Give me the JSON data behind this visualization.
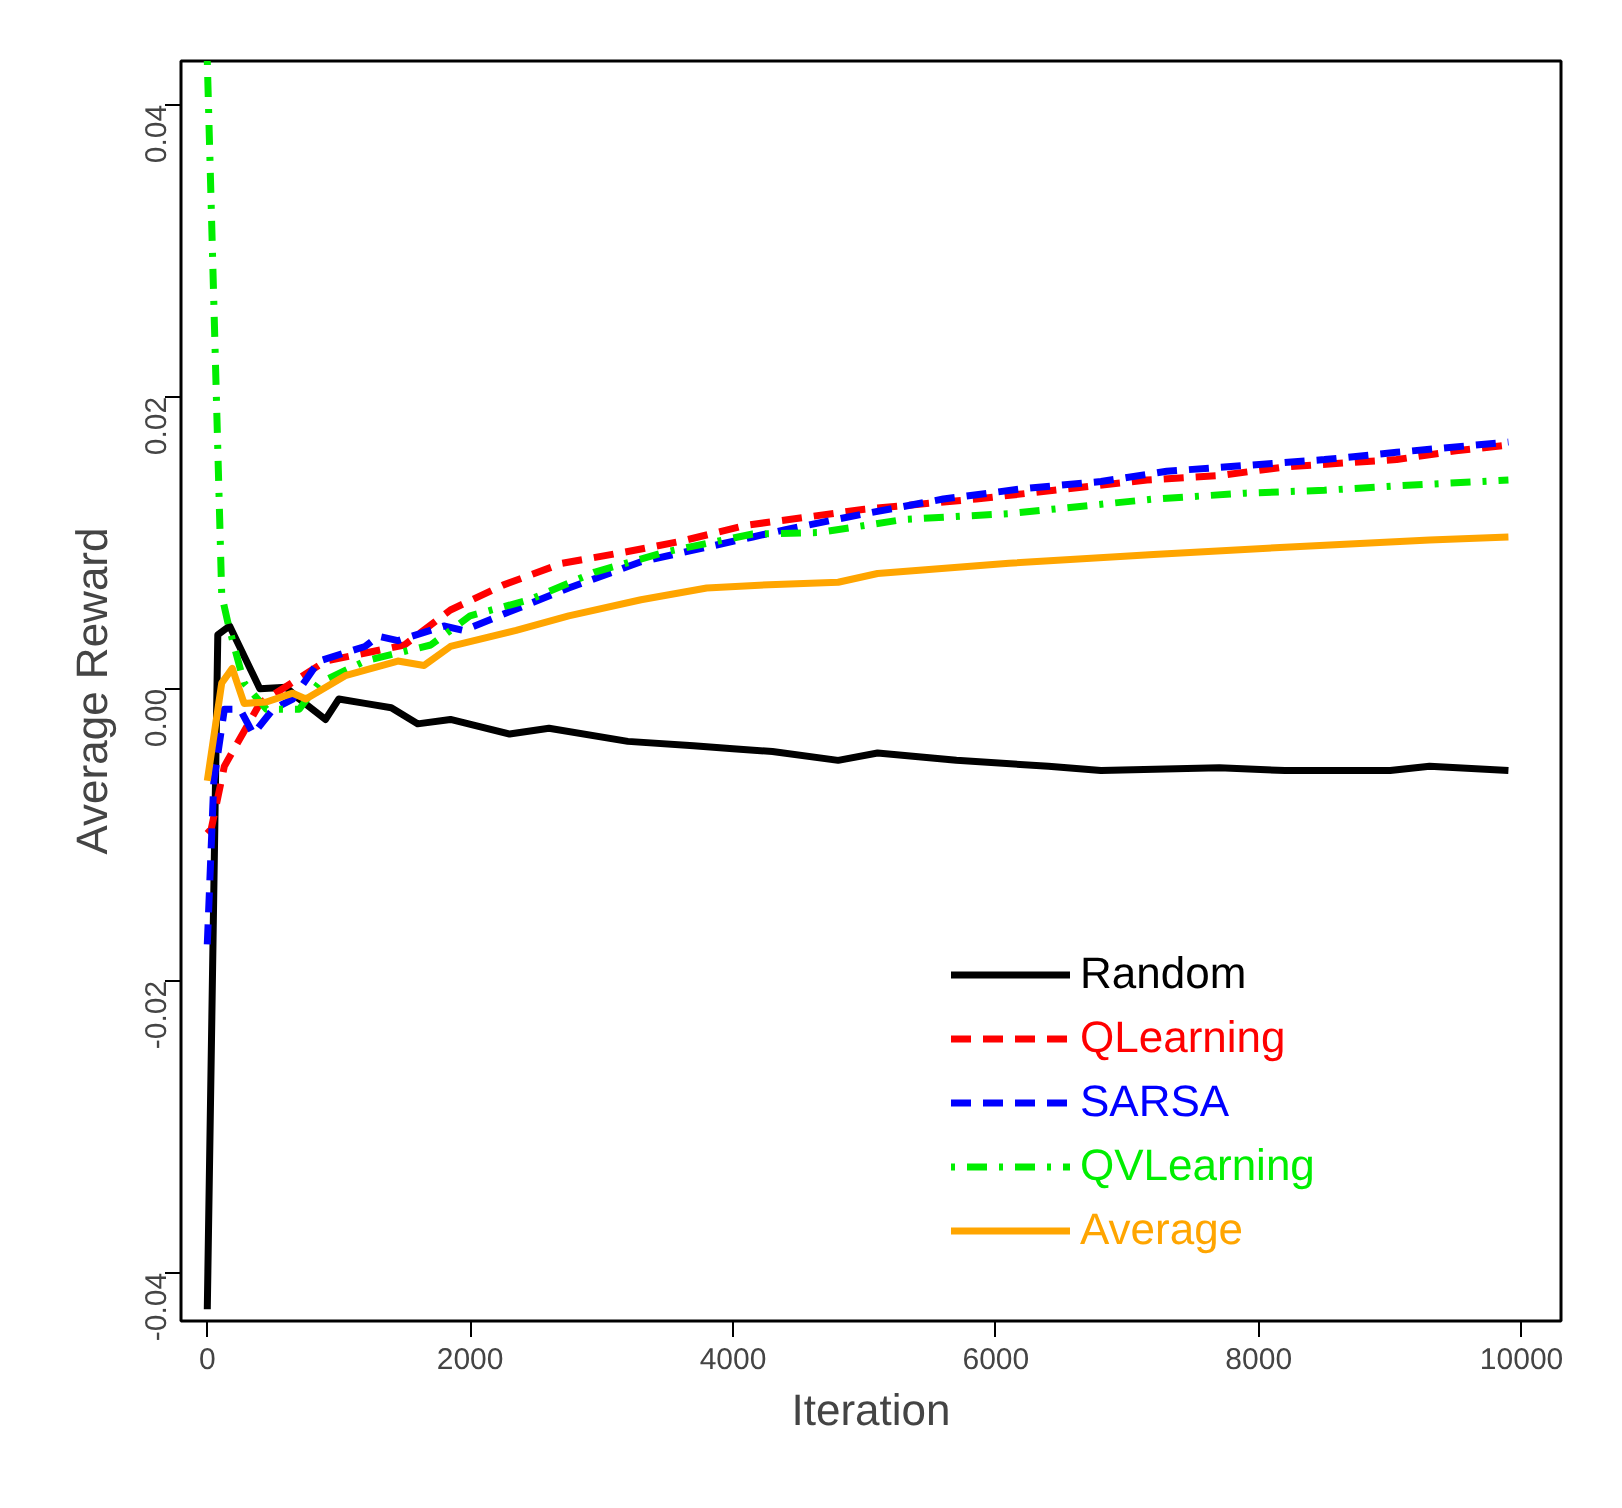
{
  "chart_data": {
    "type": "line",
    "xlabel": "Iteration",
    "ylabel": "Average Reward",
    "xlim": [
      -200,
      10300
    ],
    "ylim": [
      -0.0433,
      0.043
    ],
    "xticks": [
      0,
      2000,
      4000,
      6000,
      8000,
      10000
    ],
    "yticks": [
      {
        "value": -0.04,
        "label": "-0.04"
      },
      {
        "value": -0.02,
        "label": "-0.02"
      },
      {
        "value": 0,
        "label": "0.00"
      },
      {
        "value": 0.02,
        "label": "0.02"
      },
      {
        "value": 0.04,
        "label": "0.04"
      }
    ],
    "grid": false,
    "legend": "bottom right",
    "marker": "none",
    "series": [
      {
        "name": "Random",
        "color": "#000000",
        "line_style": "solid",
        "x": [
          0,
          80,
          170,
          400,
          600,
          700,
          900,
          1000,
          1200,
          1400,
          1600,
          1850,
          2300,
          2600,
          3200,
          3700,
          4000,
          4300,
          4800,
          5100,
          5700,
          6400,
          6800,
          7700,
          8200,
          9000,
          9300,
          9900
        ],
        "values": [
          -0.0425,
          0.0037,
          0.0043,
          0.0,
          0.0001,
          -0.0007,
          -0.0021,
          -0.0007,
          -0.001,
          -0.0013,
          -0.0024,
          -0.0021,
          -0.0031,
          -0.0027,
          -0.0036,
          -0.0039,
          -0.0041,
          -0.0043,
          -0.0049,
          -0.0044,
          -0.0049,
          -0.0053,
          -0.0056,
          -0.0054,
          -0.0056,
          -0.0056,
          -0.0053,
          -0.0056
        ]
      },
      {
        "name": "QLearning",
        "color": "#ff0000",
        "line_style": "dashed",
        "x": [
          0,
          30,
          130,
          400,
          900,
          1500,
          1850,
          2250,
          2700,
          3200,
          3600,
          4100,
          5000,
          5850,
          7150,
          7700,
          8200,
          9050,
          9500,
          9900
        ],
        "values": [
          -0.0099,
          -0.0096,
          -0.0053,
          -0.001,
          0.0019,
          0.003,
          0.0054,
          0.0071,
          0.0086,
          0.0094,
          0.0101,
          0.0112,
          0.0123,
          0.013,
          0.0143,
          0.0146,
          0.0152,
          0.0157,
          0.0163,
          0.0167
        ]
      },
      {
        "name": "SARSA",
        "color": "#0000ff",
        "line_style": "dashed",
        "x": [
          0,
          50,
          130,
          250,
          350,
          500,
          650,
          850,
          1200,
          1300,
          1450,
          1800,
          1950,
          2250,
          2750,
          3300,
          3800,
          4150,
          4400,
          4950,
          5600,
          6200,
          6800,
          7300,
          7900,
          8500,
          9050,
          9900
        ],
        "values": [
          -0.0175,
          -0.0063,
          -0.0014,
          -0.0014,
          -0.0031,
          -0.0014,
          -0.0007,
          0.0019,
          0.0029,
          0.0036,
          0.0033,
          0.0043,
          0.004,
          0.0051,
          0.0069,
          0.0087,
          0.0097,
          0.0104,
          0.0109,
          0.0119,
          0.013,
          0.0137,
          0.0142,
          0.0149,
          0.0153,
          0.0157,
          0.0162,
          0.0169
        ]
      },
      {
        "name": "QVLearning",
        "color": "#00ee00",
        "line_style": "dashdot",
        "x": [
          0,
          110,
          160,
          280,
          450,
          700,
          850,
          1200,
          1700,
          2000,
          2450,
          2950,
          3500,
          4150,
          4650,
          5300,
          6100,
          7200,
          7900,
          8500,
          9050,
          9900
        ],
        "values": [
          0.043,
          0.0064,
          0.0044,
          0.0004,
          -0.0014,
          -0.0014,
          0.0004,
          0.0019,
          0.003,
          0.005,
          0.0061,
          0.008,
          0.0094,
          0.0106,
          0.0107,
          0.0116,
          0.012,
          0.013,
          0.0134,
          0.0136,
          0.0139,
          0.0143
        ]
      },
      {
        "name": "Average",
        "color": "#ffa500",
        "line_style": "solid",
        "x": [
          0,
          110,
          190,
          280,
          450,
          650,
          750,
          1050,
          1450,
          1650,
          1850,
          2350,
          2750,
          3300,
          3800,
          4200,
          4800,
          5100,
          6100,
          7200,
          8200,
          9300,
          9900
        ],
        "values": [
          -0.0063,
          0.0004,
          0.0014,
          -0.001,
          -0.0009,
          -0.0003,
          -0.0007,
          0.0009,
          0.0019,
          0.0016,
          0.0029,
          0.004,
          0.005,
          0.0061,
          0.0069,
          0.0071,
          0.0073,
          0.0079,
          0.0086,
          0.0092,
          0.0097,
          0.0102,
          0.0104
        ]
      }
    ]
  }
}
